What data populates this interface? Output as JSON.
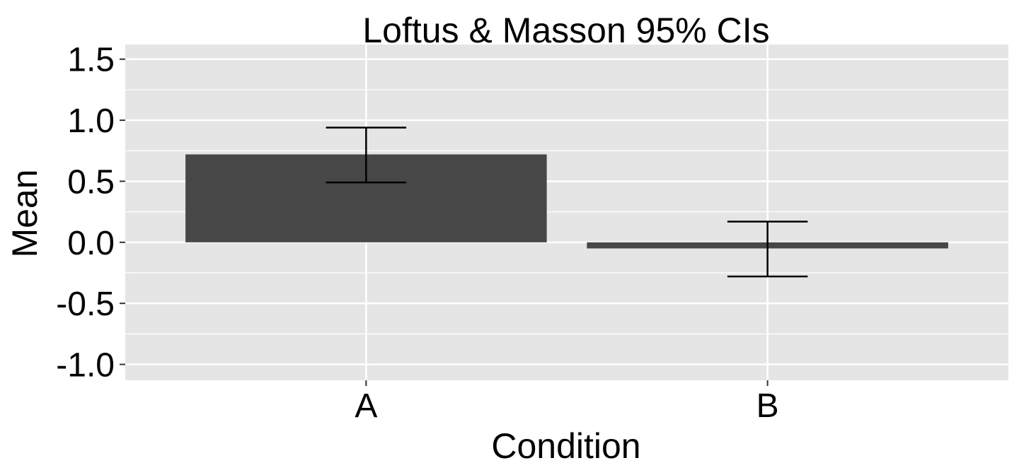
{
  "chart_data": {
    "type": "bar",
    "title": "Loftus & Masson 95% CIs",
    "xlabel": "Condition",
    "ylabel": "Mean",
    "categories": [
      "A",
      "B"
    ],
    "values": [
      0.72,
      -0.05
    ],
    "error_bars": [
      {
        "lower": 0.49,
        "upper": 0.94
      },
      {
        "lower": -0.28,
        "upper": 0.17
      }
    ],
    "ylim": [
      -1.13,
      1.62
    ],
    "yticks": [
      1.5,
      1.0,
      0.5,
      0.0,
      -0.5,
      -1.0
    ],
    "ytick_labels": [
      "1.5",
      "1.0",
      "0.5",
      "0.0",
      "-0.5",
      "-1.0"
    ],
    "grid": true,
    "colors": {
      "panel": "#e5e5e5",
      "grid_major": "#ffffff",
      "bar": "#474747",
      "errorbar": "#000000"
    }
  }
}
